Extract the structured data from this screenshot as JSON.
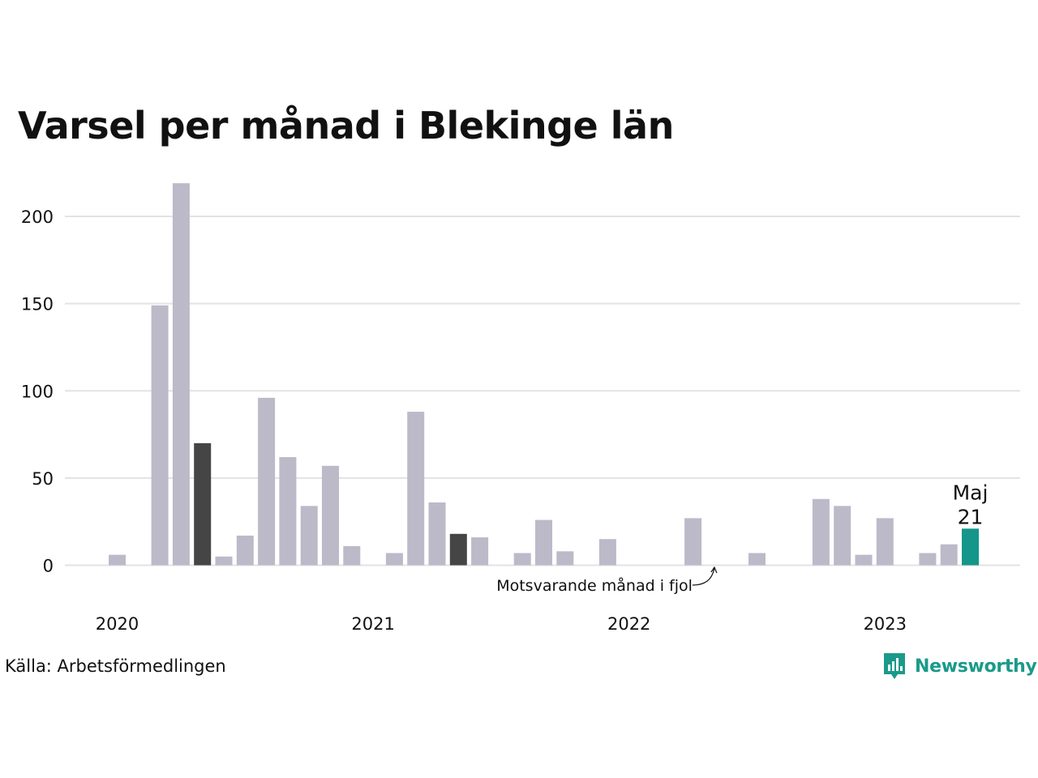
{
  "chart_data": {
    "type": "bar",
    "title": "Varsel per månad i Blekinge län",
    "source": "Källa: Arbetsförmedlingen",
    "brand": "Newsworthy",
    "xlabel": "",
    "ylabel": "",
    "ylim": [
      0,
      220
    ],
    "yticks": [
      0,
      50,
      100,
      150,
      200
    ],
    "grid": true,
    "x_tick_labels": [
      {
        "label": "2020",
        "index": 0
      },
      {
        "label": "2021",
        "index": 12
      },
      {
        "label": "2022",
        "index": 24
      },
      {
        "label": "2023",
        "index": 36
      }
    ],
    "categories": [
      "2020-01",
      "2020-02",
      "2020-03",
      "2020-04",
      "2020-05",
      "2020-06",
      "2020-07",
      "2020-08",
      "2020-09",
      "2020-10",
      "2020-11",
      "2020-12",
      "2021-01",
      "2021-02",
      "2021-03",
      "2021-04",
      "2021-05",
      "2021-06",
      "2021-07",
      "2021-08",
      "2021-09",
      "2021-10",
      "2021-11",
      "2021-12",
      "2022-01",
      "2022-02",
      "2022-03",
      "2022-04",
      "2022-05",
      "2022-06",
      "2022-07",
      "2022-08",
      "2022-09",
      "2022-10",
      "2022-11",
      "2022-12",
      "2023-01",
      "2023-02",
      "2023-03",
      "2023-04",
      "2023-05"
    ],
    "values": [
      6,
      0,
      149,
      219,
      70,
      5,
      17,
      96,
      62,
      34,
      57,
      11,
      0,
      7,
      88,
      36,
      18,
      16,
      0,
      7,
      26,
      8,
      0,
      15,
      0,
      0,
      0,
      27,
      0,
      0,
      7,
      0,
      0,
      38,
      34,
      6,
      27,
      0,
      7,
      12,
      21
    ],
    "same_month_previous_years": [
      "2020-05",
      "2021-05"
    ],
    "highlight": {
      "category": "2023-05",
      "month_label": "Maj",
      "value_label": "21"
    },
    "annotation": {
      "text": "Motsvarande månad i fjol",
      "target": "2022-05"
    },
    "colors": {
      "bar": "#bcbac9",
      "previous_year": "#454545",
      "highlight": "#14968a",
      "grid": "#e3e3e3",
      "brand": "#1a9a8a"
    }
  }
}
